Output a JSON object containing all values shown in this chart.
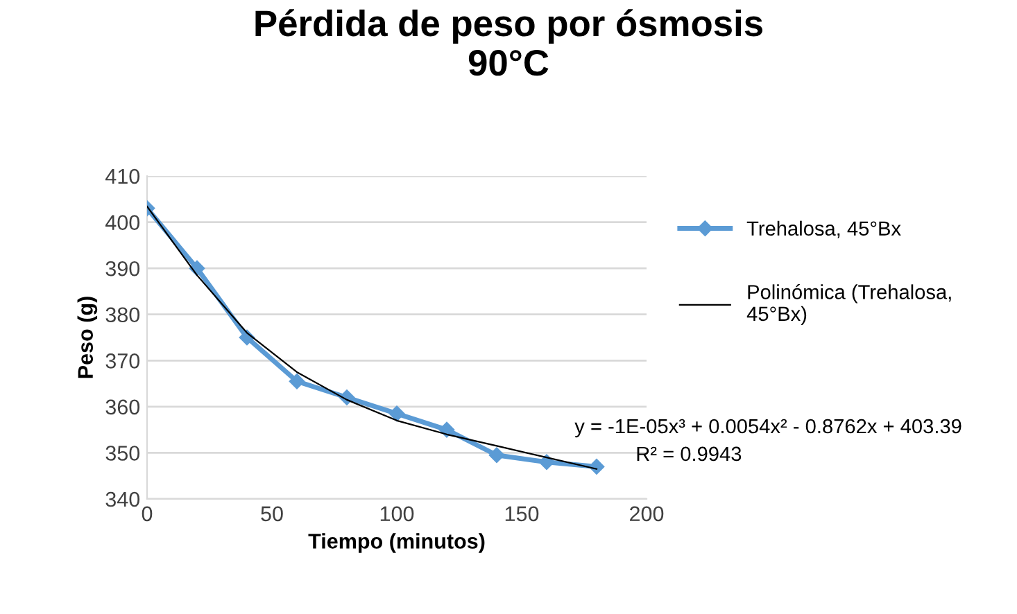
{
  "chart_data": {
    "type": "line",
    "title": "Pérdida de peso por ósmosis\n90°C",
    "xlabel": "Tiempo (minutos)",
    "ylabel": "Peso (g)",
    "series": [
      {
        "name": "Trehalosa, 45°Bx",
        "color": "#5b9bd5",
        "marker": "diamond",
        "x": [
          0,
          20,
          40,
          60,
          80,
          100,
          120,
          140,
          160,
          180
        ],
        "values": [
          403,
          390,
          375,
          365.5,
          362,
          358.5,
          355,
          349.5,
          348,
          347
        ]
      },
      {
        "name": "Polinómica (Trehalosa, 45°Bx)",
        "color": "#000000",
        "marker": "none",
        "x": [
          0,
          20,
          40,
          60,
          80,
          100,
          120,
          140,
          160,
          180
        ],
        "values": [
          403.4,
          388.5,
          376,
          367.5,
          361.5,
          357,
          354,
          351.5,
          349,
          346.5
        ]
      }
    ],
    "annotations": [
      "y = -1E-05x³ + 0.0054x² - 0.8762x + 403.39",
      "R² = 0.9943"
    ],
    "xlim": [
      0,
      200
    ],
    "xticks": [
      0,
      50,
      100,
      150,
      200
    ],
    "ylim": [
      340,
      410
    ],
    "yticks": [
      340,
      350,
      360,
      370,
      380,
      390,
      400,
      410
    ],
    "grid": "y",
    "legend": "right"
  }
}
